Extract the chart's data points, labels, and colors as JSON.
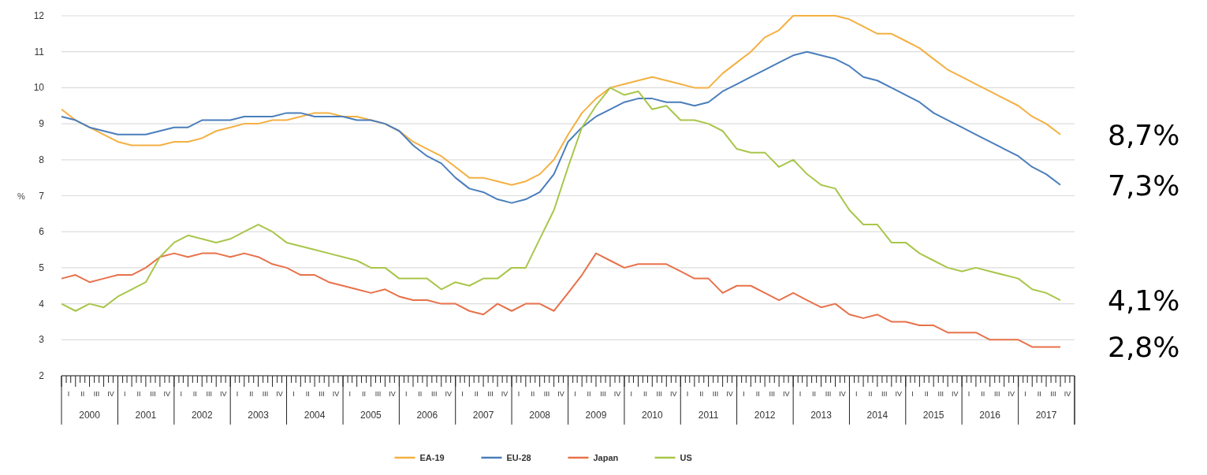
{
  "chart_data": {
    "type": "line",
    "ylabel": "%",
    "ylim": [
      2,
      12
    ],
    "yticks": [
      2,
      3,
      4,
      5,
      6,
      7,
      8,
      9,
      10,
      11,
      12
    ],
    "grid": "y",
    "legend": "bottom",
    "line_style": "solid",
    "marker": "none",
    "xlim": [
      "2000-01-01",
      "2018-01-01"
    ],
    "xticks": [
      {
        "value": "2000-07-01",
        "label": "2000"
      },
      {
        "value": "2001-07-01",
        "label": "2001"
      },
      {
        "value": "2002-07-01",
        "label": "2002"
      },
      {
        "value": "2003-07-01",
        "label": "2003"
      },
      {
        "value": "2004-07-01",
        "label": "2004"
      },
      {
        "value": "2005-07-01",
        "label": "2005"
      },
      {
        "value": "2006-07-01",
        "label": "2006"
      },
      {
        "value": "2007-07-01",
        "label": "2007"
      },
      {
        "value": "2008-07-01",
        "label": "2008"
      },
      {
        "value": "2009-07-01",
        "label": "2009"
      },
      {
        "value": "2010-07-01",
        "label": "2010"
      },
      {
        "value": "2011-07-01",
        "label": "2011"
      },
      {
        "value": "2012-07-01",
        "label": "2012"
      },
      {
        "value": "2013-07-01",
        "label": "2013"
      },
      {
        "value": "2014-07-01",
        "label": "2014"
      },
      {
        "value": "2015-07-01",
        "label": "2015"
      },
      {
        "value": "2016-07-01",
        "label": "2016"
      },
      {
        "value": "2017-07-01",
        "label": "2017"
      }
    ],
    "x": [
      "2000-01",
      "2000-04",
      "2000-07",
      "2000-10",
      "2001-01",
      "2001-04",
      "2001-07",
      "2001-10",
      "2002-01",
      "2002-04",
      "2002-07",
      "2002-10",
      "2003-01",
      "2003-04",
      "2003-07",
      "2003-10",
      "2004-01",
      "2004-04",
      "2004-07",
      "2004-10",
      "2005-01",
      "2005-04",
      "2005-07",
      "2005-10",
      "2006-01",
      "2006-04",
      "2006-07",
      "2006-10",
      "2007-01",
      "2007-04",
      "2007-07",
      "2007-10",
      "2008-01",
      "2008-04",
      "2008-07",
      "2008-10",
      "2009-01",
      "2009-04",
      "2009-07",
      "2009-10",
      "2010-01",
      "2010-04",
      "2010-07",
      "2010-10",
      "2011-01",
      "2011-04",
      "2011-07",
      "2011-10",
      "2012-01",
      "2012-04",
      "2012-07",
      "2012-10",
      "2013-01",
      "2013-04",
      "2013-07",
      "2013-10",
      "2014-01",
      "2014-04",
      "2014-07",
      "2014-10",
      "2015-01",
      "2015-04",
      "2015-07",
      "2015-10",
      "2016-01",
      "2016-04",
      "2016-07",
      "2016-10",
      "2017-01",
      "2017-04",
      "2017-07",
      "2017-10"
    ],
    "series": [
      {
        "name": "EA-19",
        "color": "#f4b042",
        "values": [
          9.4,
          9.1,
          8.9,
          8.7,
          8.5,
          8.4,
          8.4,
          8.4,
          8.5,
          8.5,
          8.6,
          8.8,
          8.9,
          9.0,
          9.0,
          9.1,
          9.1,
          9.2,
          9.3,
          9.3,
          9.2,
          9.2,
          9.1,
          9.0,
          8.8,
          8.5,
          8.3,
          8.1,
          7.8,
          7.5,
          7.5,
          7.4,
          7.3,
          7.4,
          7.6,
          8.0,
          8.7,
          9.3,
          9.7,
          10.0,
          10.1,
          10.2,
          10.3,
          10.2,
          10.1,
          10.0,
          10.0,
          10.4,
          10.7,
          11.0,
          11.4,
          11.6,
          12.0,
          12.0,
          12.0,
          12.0,
          11.9,
          11.7,
          11.5,
          11.5,
          11.3,
          11.1,
          10.8,
          10.5,
          10.3,
          10.1,
          9.9,
          9.7,
          9.5,
          9.2,
          9.0,
          8.7
        ]
      },
      {
        "name": "EU-28",
        "color": "#4a7ebb",
        "values": [
          9.2,
          9.1,
          8.9,
          8.8,
          8.7,
          8.7,
          8.7,
          8.8,
          8.9,
          8.9,
          9.1,
          9.1,
          9.1,
          9.2,
          9.2,
          9.2,
          9.3,
          9.3,
          9.2,
          9.2,
          9.2,
          9.1,
          9.1,
          9.0,
          8.8,
          8.4,
          8.1,
          7.9,
          7.5,
          7.2,
          7.1,
          6.9,
          6.8,
          6.9,
          7.1,
          7.6,
          8.5,
          8.9,
          9.2,
          9.4,
          9.6,
          9.7,
          9.7,
          9.6,
          9.6,
          9.5,
          9.6,
          9.9,
          10.1,
          10.3,
          10.5,
          10.7,
          10.9,
          11.0,
          10.9,
          10.8,
          10.6,
          10.3,
          10.2,
          10.0,
          9.8,
          9.6,
          9.3,
          9.1,
          8.9,
          8.7,
          8.5,
          8.3,
          8.1,
          7.8,
          7.6,
          7.3
        ]
      },
      {
        "name": "Japan",
        "color": "#e8714a",
        "values": [
          4.7,
          4.8,
          4.6,
          4.7,
          4.8,
          4.8,
          5.0,
          5.3,
          5.4,
          5.3,
          5.4,
          5.4,
          5.3,
          5.4,
          5.3,
          5.1,
          5.0,
          4.8,
          4.8,
          4.6,
          4.5,
          4.4,
          4.3,
          4.4,
          4.2,
          4.1,
          4.1,
          4.0,
          4.0,
          3.8,
          3.7,
          4.0,
          3.8,
          4.0,
          4.0,
          3.8,
          4.3,
          4.8,
          5.4,
          5.2,
          5.0,
          5.1,
          5.1,
          5.1,
          4.9,
          4.7,
          4.7,
          4.3,
          4.5,
          4.5,
          4.3,
          4.1,
          4.3,
          4.1,
          3.9,
          4.0,
          3.7,
          3.6,
          3.7,
          3.5,
          3.5,
          3.4,
          3.4,
          3.2,
          3.2,
          3.2,
          3.0,
          3.0,
          3.0,
          2.8,
          2.8,
          2.8
        ]
      },
      {
        "name": "US",
        "color": "#a8c64a",
        "values": [
          4.0,
          3.8,
          4.0,
          3.9,
          4.2,
          4.4,
          4.6,
          5.3,
          5.7,
          5.9,
          5.8,
          5.7,
          5.8,
          6.0,
          6.2,
          6.0,
          5.7,
          5.6,
          5.5,
          5.4,
          5.3,
          5.2,
          5.0,
          5.0,
          4.7,
          4.7,
          4.7,
          4.4,
          4.6,
          4.5,
          4.7,
          4.7,
          5.0,
          5.0,
          5.8,
          6.6,
          7.8,
          8.9,
          9.5,
          10.0,
          9.8,
          9.9,
          9.4,
          9.5,
          9.1,
          9.1,
          9.0,
          8.8,
          8.3,
          8.2,
          8.2,
          7.8,
          8.0,
          7.6,
          7.3,
          7.2,
          6.6,
          6.2,
          6.2,
          5.7,
          5.7,
          5.4,
          5.2,
          5.0,
          4.9,
          5.0,
          4.9,
          4.8,
          4.7,
          4.4,
          4.3,
          4.1
        ]
      }
    ],
    "annotations": [
      {
        "text": "8,7%",
        "x": "2017-10",
        "y": 8.7
      },
      {
        "text": "7,3%",
        "x": "2017-10",
        "y": 7.3
      },
      {
        "text": "4,1%",
        "x": "2017-10",
        "y": 4.1
      },
      {
        "text": "2,8%",
        "x": "2017-10",
        "y": 2.8
      },
      "I",
      "II",
      "III",
      "IV",
      "I",
      "II",
      "III",
      "IV",
      "I",
      "II",
      "III",
      "IV",
      "I",
      "II",
      "III",
      "IV",
      "I",
      "II",
      "III",
      "IV",
      "I",
      "II",
      "III",
      "IV",
      "I",
      "II",
      "III",
      "IV",
      "I",
      "II",
      "III",
      "IV",
      "I",
      "II",
      "III",
      "IV",
      "I",
      "II",
      "III",
      "IV",
      "I",
      "II",
      "III",
      "IV",
      "I",
      "II",
      "III",
      "IV",
      "I",
      "II",
      "III",
      "IV",
      "I",
      "II",
      "III",
      "IV",
      "I",
      "II",
      "III",
      "IV",
      "I",
      "II",
      "III",
      "IV",
      "I",
      "II",
      "III",
      "IV",
      "I",
      "II",
      "III",
      "IV"
    ]
  }
}
